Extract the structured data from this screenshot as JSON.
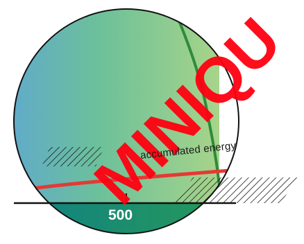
{
  "annotation": {
    "curve_label": "accumulated energy"
  },
  "axis": {
    "tick_label": "500"
  },
  "watermark": {
    "text": "MINIQU"
  },
  "colors": {
    "gradient_left": "#5fa8d0",
    "gradient_mid": "#6cc09a",
    "gradient_right": "#a7d48a",
    "red_curve": "#e53935",
    "green_curve": "#2e8b3a",
    "axis_band_left": "#0e7f86",
    "axis_band_right": "#2fa24b",
    "watermark": "#ff0010"
  }
}
